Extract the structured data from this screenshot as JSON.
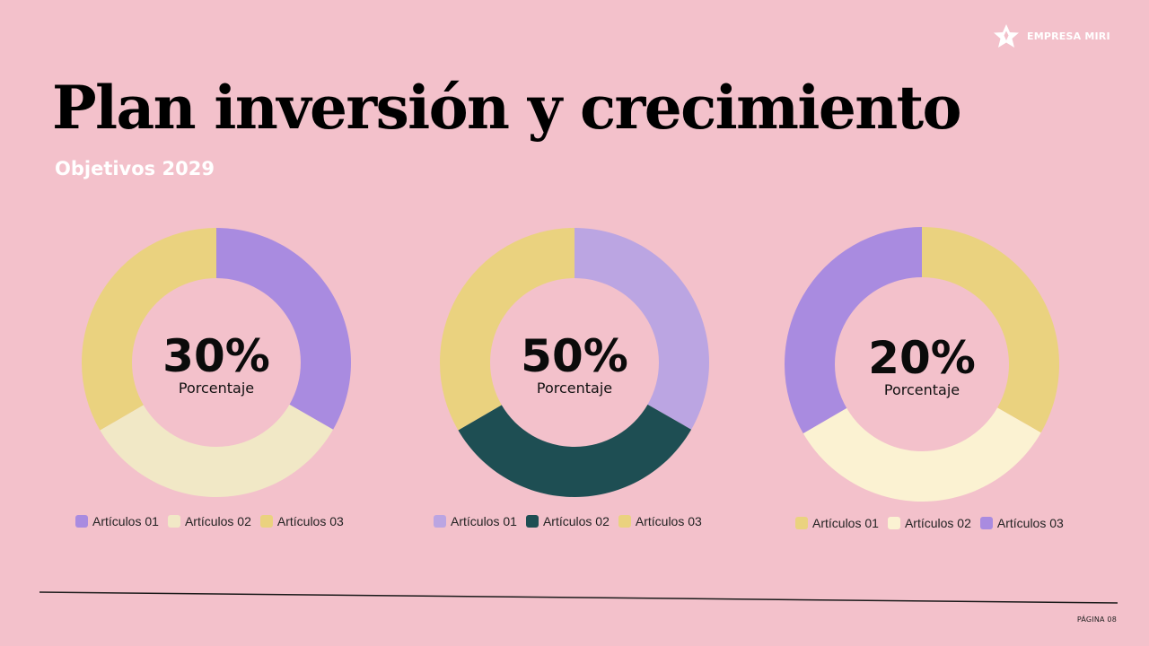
{
  "brand": {
    "name": "EMPRESA MIRI",
    "icon": "star-logo-icon",
    "color": "#ffffff"
  },
  "title": "Plan inversión y crecimiento",
  "subtitle": "Objetivos 2029",
  "colors": {
    "background": "#f3c1cb"
  },
  "chart_data": [
    {
      "type": "pie",
      "donut": true,
      "center_value": "30%",
      "center_label": "Porcentaje",
      "categories": [
        "Artículos 01",
        "Artículos 02",
        "Artículos 03"
      ],
      "values": [
        33.3,
        33.3,
        33.4
      ],
      "colors": [
        "#a98be0",
        "#f1e8c6",
        "#ead27f"
      ],
      "legend_position": "bottom"
    },
    {
      "type": "pie",
      "donut": true,
      "center_value": "50%",
      "center_label": "Porcentaje",
      "categories": [
        "Artículos 01",
        "Artículos 02",
        "Artículos 03"
      ],
      "values": [
        33.3,
        33.3,
        33.4
      ],
      "colors": [
        "#bba5e2",
        "#1e4e53",
        "#ead27f"
      ],
      "legend_position": "bottom"
    },
    {
      "type": "pie",
      "donut": true,
      "center_value": "20%",
      "center_label": "Porcentaje",
      "categories": [
        "Artículos 01",
        "Artículos 02",
        "Artículos 03"
      ],
      "values": [
        33.3,
        33.3,
        33.4
      ],
      "colors": [
        "#ead27f",
        "#fbf2d2",
        "#a98be0"
      ],
      "legend_position": "bottom"
    }
  ],
  "footer": {
    "page_label": "PÁGINA 08"
  }
}
